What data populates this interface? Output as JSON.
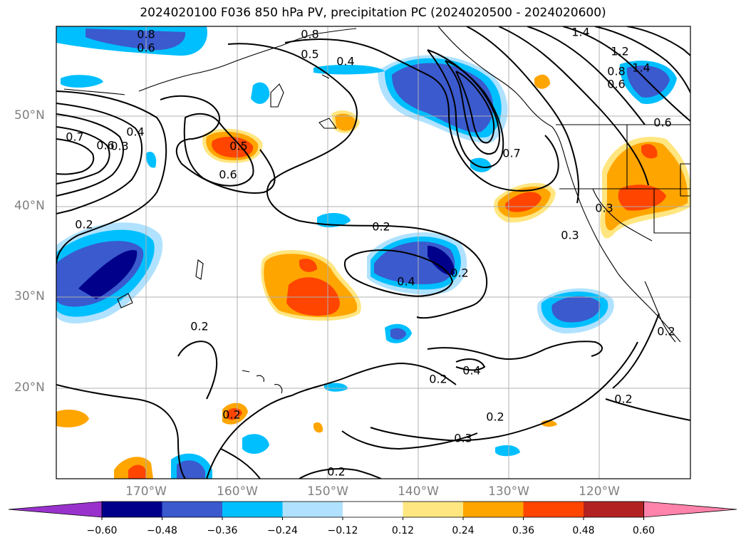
{
  "title": "2024020100 F036 850 hPa PV, precipitation PC (2024020500 - 2024020600)",
  "lat_labels": [
    "50°N",
    "40°N",
    "30°N",
    "20°N"
  ],
  "lon_labels": [
    "170°W",
    "160°W",
    "150°W",
    "140°W",
    "130°W",
    "120°W"
  ],
  "contour_labels": [
    "0.8",
    "0.6",
    "0.8",
    "0.5",
    "0.4",
    "1.4",
    "1.2",
    "1.4",
    "0.8",
    "0.6",
    "0.6",
    "0.7",
    "0.6",
    "0.4",
    "0.3",
    "0.5",
    "0.6",
    "0.7",
    "0.2",
    "0.3",
    "0.3",
    "0.2",
    "0.4",
    "0.2",
    "0.2",
    "0.2",
    "0.4",
    "0.2",
    "0.3",
    "0.2",
    "0.2",
    "0.2",
    "0.2"
  ],
  "colorbar": {
    "ticks": [
      "−0.60",
      "−0.48",
      "−0.36",
      "−0.24",
      "−0.12",
      "0.12",
      "0.24",
      "0.36",
      "0.48",
      "0.60"
    ],
    "colors": [
      "#9932cc",
      "#00008b",
      "#3a5acd",
      "#00bfff",
      "#b0e2ff",
      "#ffffff",
      "#ffe680",
      "#ffa500",
      "#ff4500",
      "#b22222",
      "#ff83aa"
    ]
  }
}
